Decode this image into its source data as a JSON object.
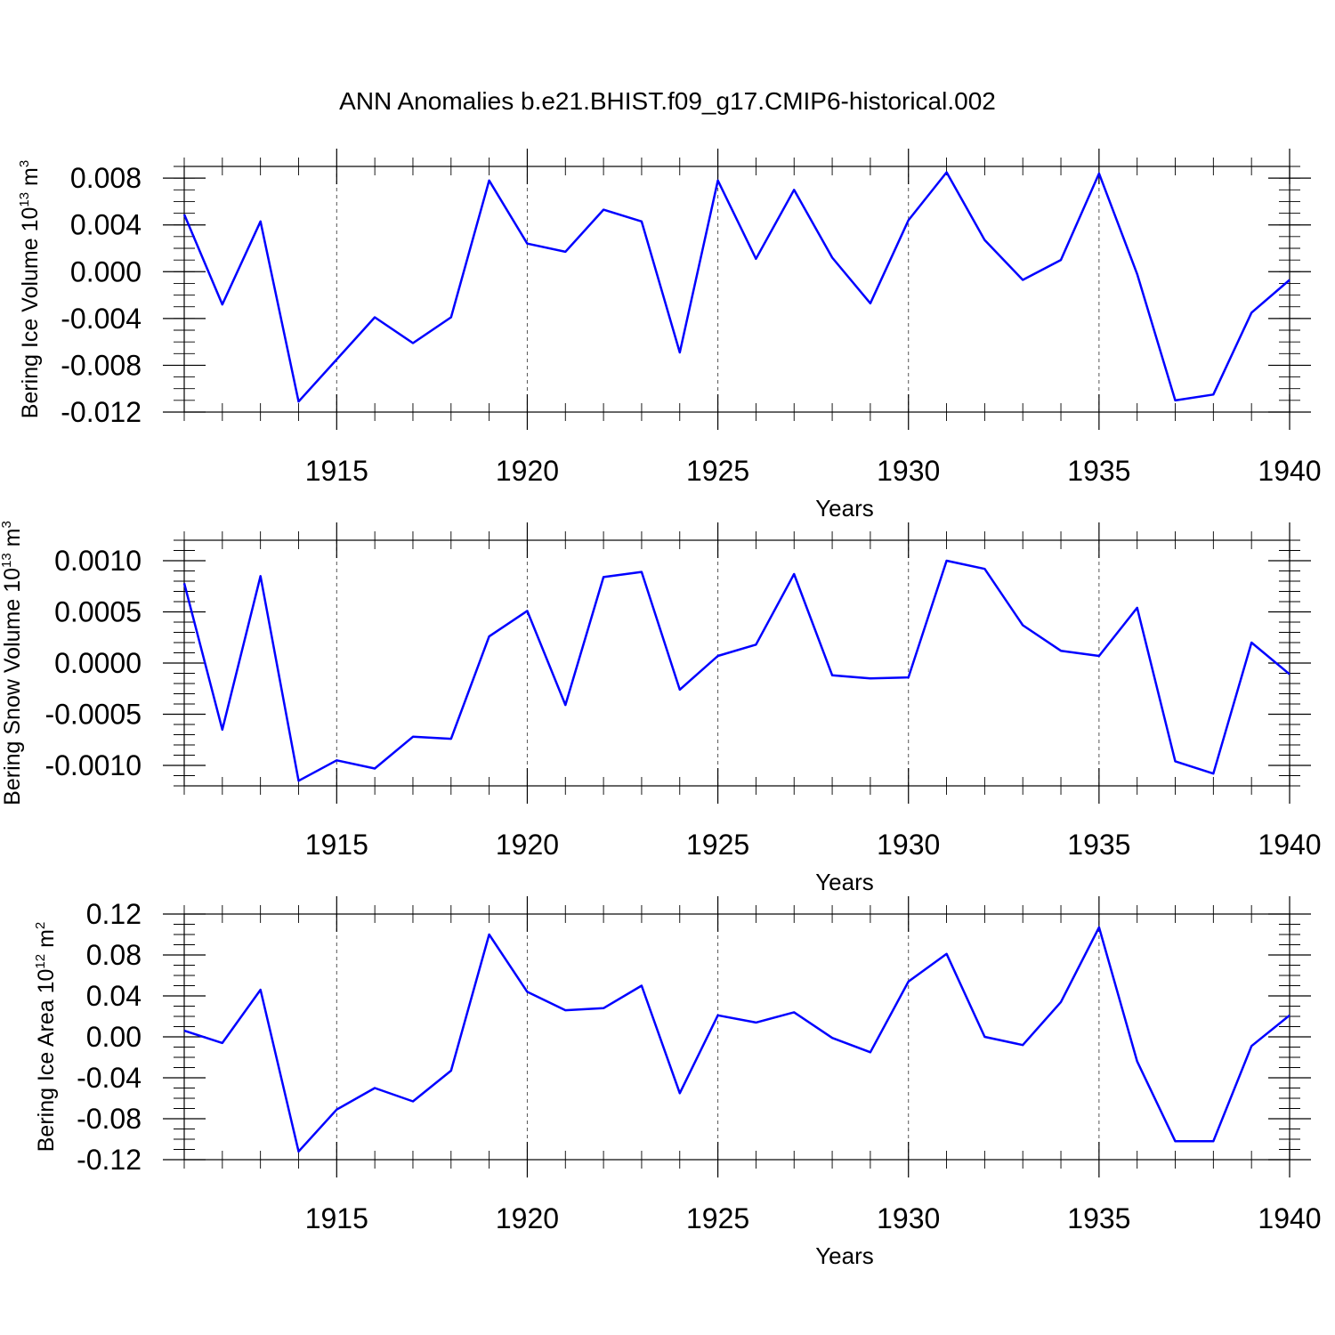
{
  "chart_data": [
    {
      "type": "line",
      "title": "ANN Anomalies b.e21.BHIST.f09_g17.CMIP6-historical.002",
      "xlabel": "Years",
      "ylabel": "Bering Ice Volume 10",
      "ylabel_exp": "13",
      "ylabel_unit": "m",
      "ylabel_unit_exp": "3",
      "xlim": [
        1911,
        1940
      ],
      "ylim": [
        -0.012,
        0.009
      ],
      "xticks": [
        1915,
        1920,
        1925,
        1930,
        1935,
        1940
      ],
      "yticks": [
        "0.008",
        "0.004",
        "0.000",
        "-0.004",
        "-0.008",
        "-0.012"
      ],
      "ytick_values": [
        0.008,
        0.004,
        0.0,
        -0.004,
        -0.008,
        -0.012
      ],
      "yminor_step": 0.001,
      "x": [
        1911,
        1912,
        1913,
        1914,
        1915,
        1916,
        1917,
        1918,
        1919,
        1920,
        1921,
        1922,
        1923,
        1924,
        1925,
        1926,
        1927,
        1928,
        1929,
        1930,
        1931,
        1932,
        1933,
        1934,
        1935,
        1936,
        1937,
        1938,
        1939,
        1940
      ],
      "series": [
        {
          "name": "Bering Ice Volume",
          "values": [
            0.0049,
            -0.0028,
            0.0043,
            -0.0111,
            -0.0075,
            -0.0039,
            -0.0061,
            -0.0039,
            0.0078,
            0.0024,
            0.0017,
            0.0053,
            0.0043,
            -0.0069,
            0.0078,
            0.0011,
            0.007,
            0.0012,
            -0.0027,
            0.0044,
            0.0085,
            0.0027,
            -0.0007,
            0.001,
            0.0084,
            -0.0002,
            -0.011,
            -0.0105,
            -0.0035,
            -0.0007
          ]
        }
      ]
    },
    {
      "type": "line",
      "xlabel": "Years",
      "ylabel": "Bering Snow Volume 10",
      "ylabel_exp": "13",
      "ylabel_unit": "m",
      "ylabel_unit_exp": "3",
      "xlim": [
        1911,
        1940
      ],
      "ylim": [
        -0.0012,
        0.0012
      ],
      "xticks": [
        1915,
        1920,
        1925,
        1930,
        1935,
        1940
      ],
      "yticks": [
        "0.0010",
        "0.0005",
        "0.0000",
        "-0.0005",
        "-0.0010"
      ],
      "ytick_values": [
        0.001,
        0.0005,
        0.0,
        -0.0005,
        -0.001
      ],
      "yminor_step": 0.0001,
      "x": [
        1911,
        1912,
        1913,
        1914,
        1915,
        1916,
        1917,
        1918,
        1919,
        1920,
        1921,
        1922,
        1923,
        1924,
        1925,
        1926,
        1927,
        1928,
        1929,
        1930,
        1931,
        1932,
        1933,
        1934,
        1935,
        1936,
        1937,
        1938,
        1939,
        1940
      ],
      "series": [
        {
          "name": "Bering Snow Volume",
          "values": [
            0.00078,
            -0.00065,
            0.00085,
            -0.00115,
            -0.00095,
            -0.00103,
            -0.00072,
            -0.00074,
            0.00026,
            0.00051,
            -0.00041,
            0.00084,
            0.00089,
            -0.00026,
            7e-05,
            0.00018,
            0.00087,
            -0.00012,
            -0.00015,
            -0.00014,
            0.001,
            0.00092,
            0.00037,
            0.00012,
            7e-05,
            0.00054,
            -0.00096,
            -0.00108,
            0.0002,
            -0.00011
          ]
        }
      ]
    },
    {
      "type": "line",
      "xlabel": "Years",
      "ylabel": "Bering Ice Area 10",
      "ylabel_exp": "12",
      "ylabel_unit": "m",
      "ylabel_unit_exp": "2",
      "xlim": [
        1911,
        1940
      ],
      "ylim": [
        -0.12,
        0.12
      ],
      "xticks": [
        1915,
        1920,
        1925,
        1930,
        1935,
        1940
      ],
      "yticks": [
        "0.12",
        "0.08",
        "0.04",
        "0.00",
        "-0.04",
        "-0.08",
        "-0.12"
      ],
      "ytick_values": [
        0.12,
        0.08,
        0.04,
        0.0,
        -0.04,
        -0.08,
        -0.12
      ],
      "yminor_step": 0.01,
      "x": [
        1911,
        1912,
        1913,
        1914,
        1915,
        1916,
        1917,
        1918,
        1919,
        1920,
        1921,
        1922,
        1923,
        1924,
        1925,
        1926,
        1927,
        1928,
        1929,
        1930,
        1931,
        1932,
        1933,
        1934,
        1935,
        1936,
        1937,
        1938,
        1939,
        1940
      ],
      "series": [
        {
          "name": "Bering Ice Area",
          "values": [
            0.006,
            -0.006,
            0.046,
            -0.112,
            -0.071,
            -0.05,
            -0.063,
            -0.033,
            0.1,
            0.044,
            0.026,
            0.028,
            0.05,
            -0.055,
            0.021,
            0.014,
            0.024,
            -0.001,
            -0.015,
            0.054,
            0.081,
            0.0,
            -0.008,
            0.034,
            0.107,
            -0.024,
            -0.102,
            -0.102,
            -0.009,
            0.021
          ]
        }
      ]
    }
  ],
  "colors": {
    "line": "#0000ff",
    "axis": "#000000"
  }
}
